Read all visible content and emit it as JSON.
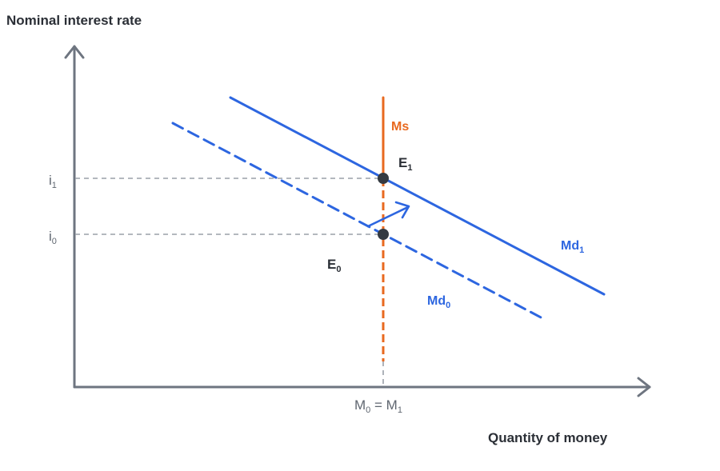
{
  "axes": {
    "y_title": "Nominal interest rate",
    "x_title": "Quantity of money"
  },
  "ticks": {
    "i1": {
      "base": "i",
      "sub": "1"
    },
    "i0": {
      "base": "i",
      "sub": "0"
    },
    "m_base_left": "M",
    "m_sub_left": "0",
    "m_equals": " = ",
    "m_base_right": "M",
    "m_sub_right": "1"
  },
  "curves": {
    "ms": {
      "label": "Ms",
      "color": "#e8691f"
    },
    "md1": {
      "base": "Md",
      "sub": "1",
      "color": "#2d66e0"
    },
    "md0": {
      "base": "Md",
      "sub": "0",
      "color": "#2d66e0"
    }
  },
  "points": {
    "e1": {
      "base": "E",
      "sub": "1"
    },
    "e0": {
      "base": "E",
      "sub": "0"
    }
  },
  "colors": {
    "axis": "#6e7580",
    "guide": "#9aa0a8",
    "point": "#343a42",
    "text": "#2b2f36"
  }
}
